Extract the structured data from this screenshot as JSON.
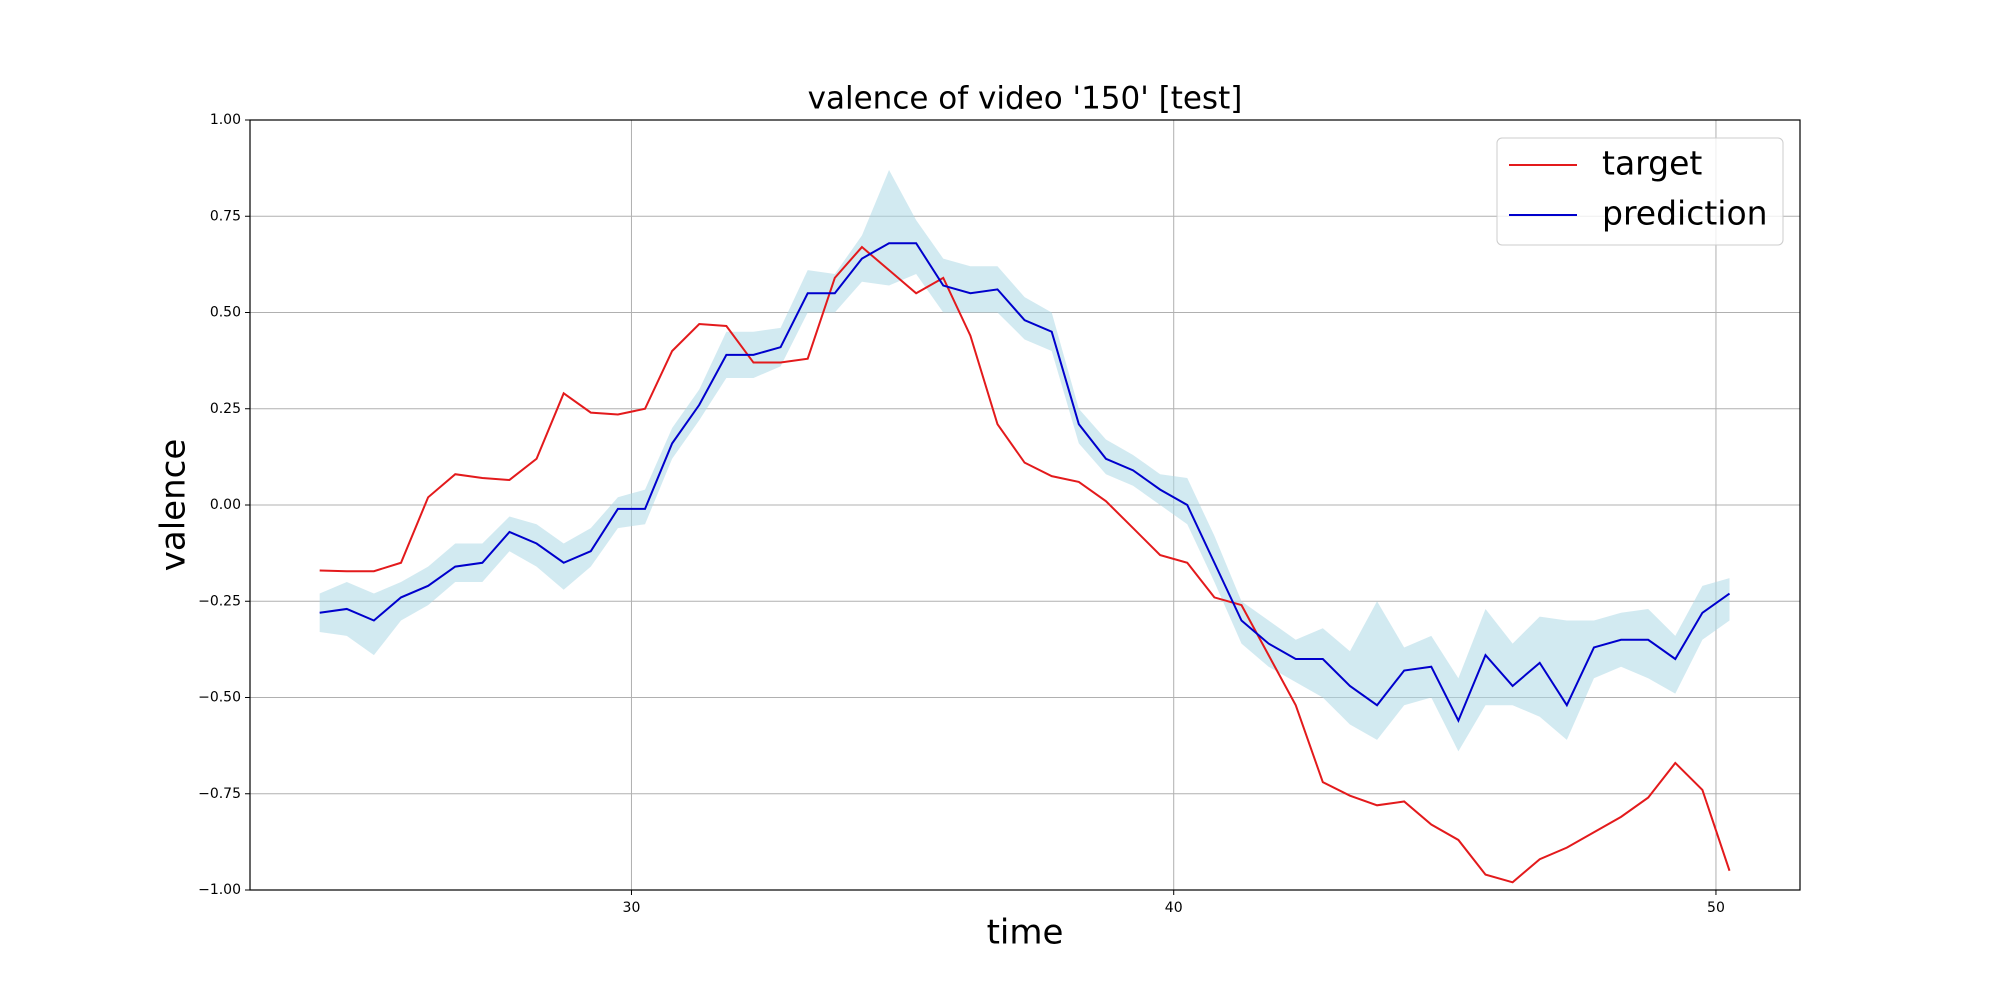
{
  "chart_data": {
    "type": "line",
    "title": "valence of video '150' [test]",
    "x_label": "time",
    "y_label": "valence",
    "xlim": [
      22.965,
      51.55
    ],
    "ylim": [
      -1.0,
      1.0
    ],
    "xticks": [
      30,
      40,
      50
    ],
    "yticks": [
      {
        "value": -1.0,
        "label": "−1.00"
      },
      {
        "value": -0.75,
        "label": "−0.75"
      },
      {
        "value": -0.5,
        "label": "−0.50"
      },
      {
        "value": -0.25,
        "label": "−0.25"
      },
      {
        "value": 0,
        "label": "0.00"
      },
      {
        "value": 0.25,
        "label": "0.25"
      },
      {
        "value": 0.5,
        "label": "0.50"
      },
      {
        "value": 0.75,
        "label": "0.75"
      },
      {
        "value": 1.0,
        "label": "1.00"
      }
    ],
    "grid": true,
    "legend": "upper right",
    "x": [
      24.25,
      24.75,
      25.25,
      25.75,
      26.25,
      26.75,
      27.25,
      27.75,
      28.25,
      28.75,
      29.25,
      29.75,
      30.25,
      30.75,
      31.25,
      31.75,
      32.25,
      32.75,
      33.25,
      33.75,
      34.25,
      34.75,
      35.25,
      35.75,
      36.25,
      36.75,
      37.25,
      37.75,
      38.25,
      38.75,
      39.25,
      39.75,
      40.25,
      40.75,
      41.25,
      41.75,
      42.25,
      42.75,
      43.25,
      43.75,
      44.25,
      44.75,
      45.25,
      45.75,
      46.25,
      46.75,
      47.25,
      47.75,
      48.25,
      48.75,
      49.25,
      49.75,
      50.25
    ],
    "series": [
      {
        "name": "target",
        "color": "#e31a1c",
        "values": [
          -0.17,
          -0.172,
          -0.172,
          -0.15,
          0.02,
          0.08,
          0.07,
          0.065,
          0.12,
          0.29,
          0.24,
          0.235,
          0.25,
          0.4,
          0.47,
          0.465,
          0.37,
          0.37,
          0.38,
          0.59,
          0.67,
          0.61,
          0.55,
          0.59,
          0.44,
          0.21,
          0.11,
          0.075,
          0.06,
          0.01,
          -0.06,
          -0.13,
          -0.15,
          -0.24,
          -0.26,
          -0.39,
          -0.52,
          -0.72,
          -0.755,
          -0.78,
          -0.77,
          -0.83,
          -0.87,
          -0.96,
          -0.98,
          -0.92,
          -0.89,
          -0.85,
          -0.81,
          -0.76,
          -0.67,
          -0.74,
          -0.95
        ]
      },
      {
        "name": "prediction",
        "color": "#0000cc",
        "band_color": "#add8e6",
        "values": [
          -0.28,
          -0.27,
          -0.3,
          -0.24,
          -0.21,
          -0.16,
          -0.15,
          -0.07,
          -0.1,
          -0.15,
          -0.12,
          -0.01,
          -0.01,
          0.16,
          0.26,
          0.39,
          0.39,
          0.41,
          0.55,
          0.55,
          0.64,
          0.68,
          0.68,
          0.57,
          0.55,
          0.56,
          0.48,
          0.45,
          0.21,
          0.12,
          0.09,
          0.04,
          0.0,
          -0.15,
          -0.3,
          -0.36,
          -0.4,
          -0.4,
          -0.47,
          -0.52,
          -0.43,
          -0.42,
          -0.56,
          -0.39,
          -0.47,
          -0.41,
          -0.52,
          -0.37,
          -0.35,
          -0.35,
          -0.4,
          -0.28,
          -0.23
        ],
        "lower": [
          -0.33,
          -0.34,
          -0.39,
          -0.3,
          -0.26,
          -0.2,
          -0.2,
          -0.12,
          -0.16,
          -0.22,
          -0.16,
          -0.06,
          -0.05,
          0.12,
          0.22,
          0.33,
          0.33,
          0.36,
          0.5,
          0.5,
          0.58,
          0.57,
          0.6,
          0.5,
          0.5,
          0.5,
          0.43,
          0.4,
          0.16,
          0.08,
          0.05,
          0.0,
          -0.05,
          -0.2,
          -0.36,
          -0.42,
          -0.46,
          -0.5,
          -0.57,
          -0.61,
          -0.52,
          -0.5,
          -0.64,
          -0.52,
          -0.52,
          -0.55,
          -0.61,
          -0.45,
          -0.42,
          -0.45,
          -0.49,
          -0.35,
          -0.3
        ],
        "upper": [
          -0.23,
          -0.2,
          -0.23,
          -0.2,
          -0.16,
          -0.1,
          -0.1,
          -0.03,
          -0.05,
          -0.1,
          -0.06,
          0.02,
          0.04,
          0.2,
          0.3,
          0.45,
          0.45,
          0.46,
          0.61,
          0.6,
          0.7,
          0.87,
          0.74,
          0.64,
          0.62,
          0.62,
          0.54,
          0.5,
          0.25,
          0.17,
          0.13,
          0.08,
          0.07,
          -0.08,
          -0.25,
          -0.3,
          -0.35,
          -0.32,
          -0.38,
          -0.25,
          -0.37,
          -0.34,
          -0.45,
          -0.27,
          -0.36,
          -0.29,
          -0.3,
          -0.3,
          -0.28,
          -0.27,
          -0.34,
          -0.21,
          -0.19
        ]
      }
    ]
  }
}
